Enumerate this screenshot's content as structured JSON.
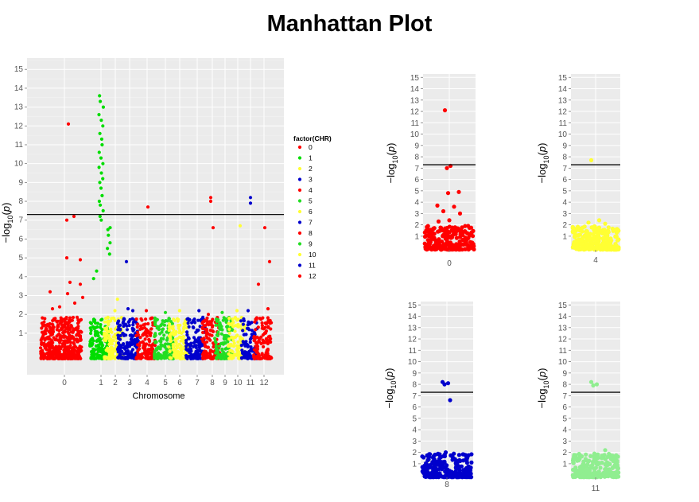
{
  "title": "Manhattan Plot",
  "chart_data": [
    {
      "type": "scatter",
      "name": "main",
      "xlabel": "Chromosome",
      "ylabel": "-log10(p)",
      "ylabel_parts": [
        "−log",
        "10",
        "(",
        "p",
        ")"
      ],
      "ylim": [
        -1.2,
        15.6
      ],
      "yticks": [
        "1",
        "2",
        "3",
        "4",
        "5",
        "6",
        "7",
        "8",
        "9",
        "10",
        "11",
        "12",
        "13",
        "14",
        "15"
      ],
      "threshold": 7.3,
      "legend_title": "factor(CHR)",
      "chromosomes": [
        "0",
        "1",
        "2",
        "3",
        "4",
        "5",
        "6",
        "7",
        "8",
        "9",
        "10",
        "11",
        "12"
      ],
      "colors": [
        "#ff0000",
        "#00dd00",
        "#ffff33",
        "#0000cc",
        "#ff0000",
        "#22dd22",
        "#ffff33",
        "#0000cc",
        "#ff0000",
        "#22dd22",
        "#ffff33",
        "#0000cc",
        "#ff0000"
      ],
      "peaks": {
        "0": [
          12.1,
          7.2,
          7.0,
          5.0,
          4.9,
          3.7,
          3.6,
          3.2,
          3.1,
          2.9,
          2.6,
          2.4,
          2.3
        ],
        "1": [
          13.6,
          13.3,
          13.0,
          12.6,
          12.3,
          12.0,
          11.6,
          11.3,
          11.0,
          10.6,
          10.3,
          10.0,
          9.8,
          9.5,
          9.2,
          9.0,
          8.7,
          8.3,
          8.0,
          7.8,
          7.5,
          7.2,
          7.0,
          6.6,
          6.5,
          6.2,
          5.8,
          5.5,
          5.2,
          4.3,
          3.9
        ],
        "2": [
          2.8,
          2.2
        ],
        "3": [
          4.8,
          2.3,
          2.2
        ],
        "4": [
          7.7,
          2.2
        ],
        "5": [
          2.1
        ],
        "6": [
          2.2
        ],
        "7": [
          2.2
        ],
        "8": [
          8.2,
          8.0,
          6.6,
          2.0
        ],
        "9": [
          2.1
        ],
        "10": [
          6.7,
          2.2
        ],
        "11": [
          8.2,
          7.9,
          2.2
        ],
        "12": [
          6.6,
          4.8,
          3.6,
          2.3
        ]
      }
    },
    {
      "type": "scatter",
      "name": "chr0",
      "ylabel": "-log10(p)",
      "ylabel_parts": [
        "−log",
        "10",
        "(",
        "p",
        ")"
      ],
      "ylim": [
        -0.2,
        15.3
      ],
      "yticks": [
        "1",
        "2",
        "3",
        "4",
        "5",
        "6",
        "7",
        "8",
        "9",
        "10",
        "11",
        "12",
        "13",
        "14",
        "15"
      ],
      "threshold": 7.3,
      "xtick": "0",
      "color": "#ff0000",
      "peaks": [
        12.1,
        7.2,
        7.0,
        4.9,
        4.8,
        3.7,
        3.6,
        3.2,
        3.0,
        2.4,
        2.3
      ]
    },
    {
      "type": "scatter",
      "name": "chr4",
      "ylabel": "-log10(p)",
      "ylabel_parts": [
        "−log",
        "10",
        "(",
        "p",
        ")"
      ],
      "ylim": [
        -0.2,
        15.3
      ],
      "yticks": [
        "1",
        "2",
        "3",
        "4",
        "5",
        "6",
        "7",
        "8",
        "9",
        "10",
        "11",
        "12",
        "13",
        "14",
        "15"
      ],
      "threshold": 7.3,
      "xtick": "4",
      "color": "#ffff33",
      "peaks": [
        7.7,
        2.4,
        2.2,
        2.1
      ]
    },
    {
      "type": "scatter",
      "name": "chr8",
      "ylabel": "-log10(p)",
      "ylabel_parts": [
        "−log",
        "10",
        "(",
        "p",
        ")"
      ],
      "ylim": [
        -0.2,
        15.3
      ],
      "yticks": [
        "1",
        "2",
        "3",
        "4",
        "5",
        "6",
        "7",
        "8",
        "9",
        "10",
        "11",
        "12",
        "13",
        "14",
        "15"
      ],
      "threshold": 7.3,
      "xtick": "8",
      "color": "#0000cc",
      "peaks": [
        8.2,
        8.1,
        8.0,
        6.6,
        2.0,
        1.8
      ]
    },
    {
      "type": "scatter",
      "name": "chr11",
      "ylabel": "-log10(p)",
      "ylabel_parts": [
        "−log",
        "10",
        "(",
        "p",
        ")"
      ],
      "ylim": [
        -0.2,
        15.3
      ],
      "yticks": [
        "1",
        "2",
        "3",
        "4",
        "5",
        "6",
        "7",
        "8",
        "9",
        "10",
        "11",
        "12",
        "13",
        "14",
        "15"
      ],
      "threshold": 7.3,
      "xtick": "11",
      "color": "#90ee90",
      "peaks": [
        8.2,
        8.0,
        7.9,
        2.2,
        1.9
      ]
    }
  ]
}
